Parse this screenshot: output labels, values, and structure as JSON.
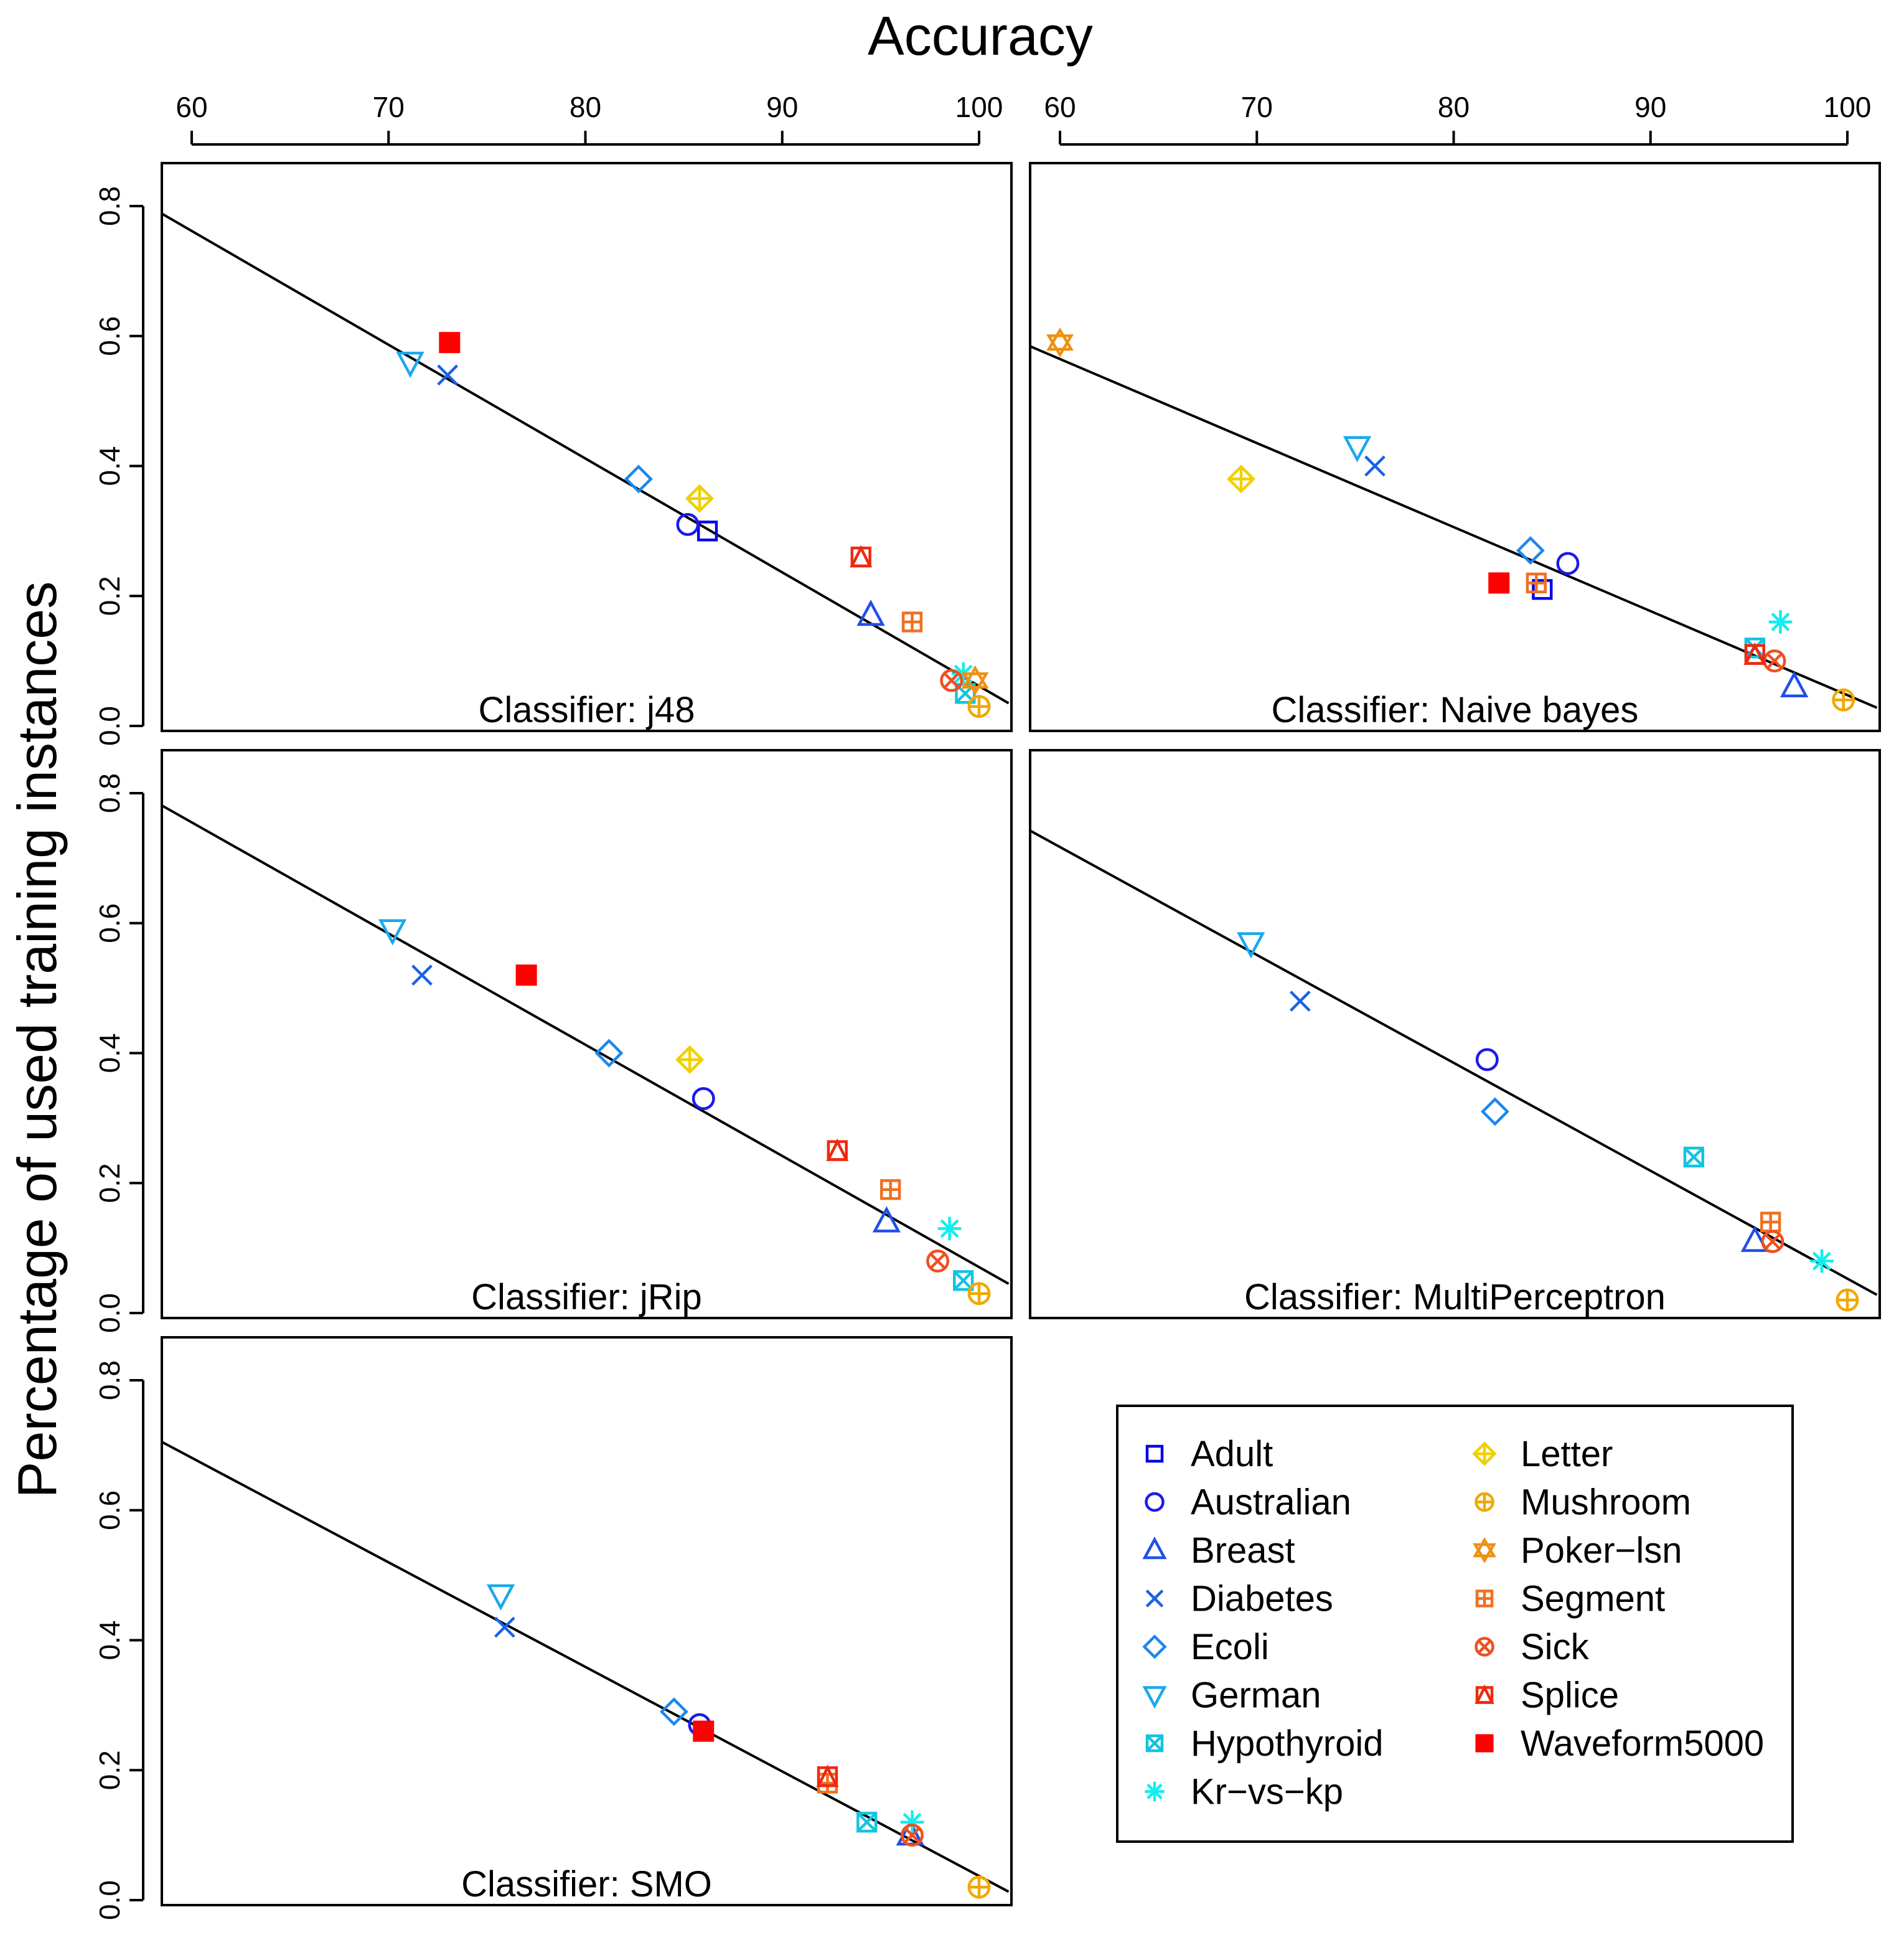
{
  "chart_data": {
    "type": "scatter",
    "title": "Accuracy",
    "xlabel": "Accuracy",
    "ylabel": "Percentage of used training instances",
    "xlim": [
      60,
      100
    ],
    "ylim": [
      0.0,
      0.8
    ],
    "x_ticks": [
      "60",
      "70",
      "80",
      "90",
      "100"
    ],
    "y_ticks": [
      "0.0",
      "0.2",
      "0.4",
      "0.6",
      "0.8"
    ],
    "grid": false,
    "legend_position": "bottom-right",
    "datasets": [
      {
        "name": "Adult",
        "marker": "square",
        "color": "#0000ee"
      },
      {
        "name": "Australian",
        "marker": "circle",
        "color": "#1a1aee"
      },
      {
        "name": "Breast",
        "marker": "triangle-up",
        "color": "#1f4fea"
      },
      {
        "name": "Diabetes",
        "marker": "x",
        "color": "#1a62e6"
      },
      {
        "name": "Ecoli",
        "marker": "diamond",
        "color": "#1b87ee"
      },
      {
        "name": "German",
        "marker": "triangle-down",
        "color": "#1aa8ee"
      },
      {
        "name": "Hypothyroid",
        "marker": "square-x",
        "color": "#11c4e0"
      },
      {
        "name": "Kr−vs−kp",
        "marker": "asterisk",
        "color": "#11eeee"
      },
      {
        "name": "Letter",
        "marker": "diamond-plus",
        "color": "#f0d000"
      },
      {
        "name": "Mushroom",
        "marker": "circle-plus",
        "color": "#f0a800"
      },
      {
        "name": "Poker−lsn",
        "marker": "star-of-david",
        "color": "#f09010"
      },
      {
        "name": "Segment",
        "marker": "square-plus",
        "color": "#f07020"
      },
      {
        "name": "Sick",
        "marker": "circle-x",
        "color": "#ee5020"
      },
      {
        "name": "Splice",
        "marker": "square-triangle",
        "color": "#ee2a10"
      },
      {
        "name": "Waveform5000",
        "marker": "filled-square",
        "color": "#ff0000"
      }
    ],
    "panels": [
      {
        "label": "Classifier: j48",
        "fit_line": {
          "x": [
            56.5,
            101.5
          ],
          "y": [
            0.823,
            0.035
          ]
        },
        "points": [
          {
            "dataset": "Adult",
            "x": 86.2,
            "y": 0.3
          },
          {
            "dataset": "Australian",
            "x": 85.2,
            "y": 0.31
          },
          {
            "dataset": "Breast",
            "x": 94.5,
            "y": 0.17
          },
          {
            "dataset": "Diabetes",
            "x": 73.0,
            "y": 0.54
          },
          {
            "dataset": "Ecoli",
            "x": 82.7,
            "y": 0.38
          },
          {
            "dataset": "German",
            "x": 71.1,
            "y": 0.56
          },
          {
            "dataset": "Hypothyroid",
            "x": 99.3,
            "y": 0.05
          },
          {
            "dataset": "Kr−vs−kp",
            "x": 99.2,
            "y": 0.08
          },
          {
            "dataset": "Letter",
            "x": 85.8,
            "y": 0.35
          },
          {
            "dataset": "Mushroom",
            "x": 100.0,
            "y": 0.03
          },
          {
            "dataset": "Poker−lsn",
            "x": 99.8,
            "y": 0.07
          },
          {
            "dataset": "Segment",
            "x": 96.6,
            "y": 0.16
          },
          {
            "dataset": "Sick",
            "x": 98.6,
            "y": 0.07
          },
          {
            "dataset": "Splice",
            "x": 94.0,
            "y": 0.26
          },
          {
            "dataset": "Waveform5000",
            "x": 73.1,
            "y": 0.59
          }
        ]
      },
      {
        "label": "Classifier: Naive bayes",
        "fit_line": {
          "x": [
            58.5,
            101.5
          ],
          "y": [
            0.584,
            0.028
          ]
        },
        "points": [
          {
            "dataset": "Adult",
            "x": 84.5,
            "y": 0.21
          },
          {
            "dataset": "Australian",
            "x": 85.8,
            "y": 0.25
          },
          {
            "dataset": "Breast",
            "x": 97.3,
            "y": 0.06
          },
          {
            "dataset": "Diabetes",
            "x": 76.0,
            "y": 0.4
          },
          {
            "dataset": "Ecoli",
            "x": 83.9,
            "y": 0.27
          },
          {
            "dataset": "German",
            "x": 75.1,
            "y": 0.43
          },
          {
            "dataset": "Hypothyroid",
            "x": 95.3,
            "y": 0.12
          },
          {
            "dataset": "Kr−vs−kp",
            "x": 96.6,
            "y": 0.16
          },
          {
            "dataset": "Letter",
            "x": 69.2,
            "y": 0.38
          },
          {
            "dataset": "Mushroom",
            "x": 99.8,
            "y": 0.04
          },
          {
            "dataset": "Poker−lsn",
            "x": 60.0,
            "y": 0.59
          },
          {
            "dataset": "Segment",
            "x": 84.2,
            "y": 0.22
          },
          {
            "dataset": "Sick",
            "x": 96.3,
            "y": 0.1
          },
          {
            "dataset": "Splice",
            "x": 95.3,
            "y": 0.11
          },
          {
            "dataset": "Waveform5000",
            "x": 82.3,
            "y": 0.22
          }
        ]
      },
      {
        "label": "Classifier: jRip",
        "fit_line": {
          "x": [
            56.5,
            101.5
          ],
          "y": [
            0.815,
            0.045
          ]
        },
        "points": [
          {
            "dataset": "Australian",
            "x": 86.0,
            "y": 0.33
          },
          {
            "dataset": "Breast",
            "x": 95.3,
            "y": 0.14
          },
          {
            "dataset": "Diabetes",
            "x": 71.7,
            "y": 0.52
          },
          {
            "dataset": "Ecoli",
            "x": 81.2,
            "y": 0.4
          },
          {
            "dataset": "German",
            "x": 70.2,
            "y": 0.59
          },
          {
            "dataset": "Hypothyroid",
            "x": 99.2,
            "y": 0.05
          },
          {
            "dataset": "Kr−vs−kp",
            "x": 98.5,
            "y": 0.13
          },
          {
            "dataset": "Letter",
            "x": 85.3,
            "y": 0.39
          },
          {
            "dataset": "Mushroom",
            "x": 100.0,
            "y": 0.03
          },
          {
            "dataset": "Segment",
            "x": 95.5,
            "y": 0.19
          },
          {
            "dataset": "Sick",
            "x": 97.9,
            "y": 0.08
          },
          {
            "dataset": "Splice",
            "x": 92.8,
            "y": 0.25
          },
          {
            "dataset": "Waveform5000",
            "x": 77.0,
            "y": 0.52
          }
        ]
      },
      {
        "label": "Classifier: MultiPerceptron",
        "fit_line": {
          "x": [
            58.5,
            101.5
          ],
          "y": [
            0.742,
            0.028
          ]
        },
        "points": [
          {
            "dataset": "Australian",
            "x": 81.7,
            "y": 0.39
          },
          {
            "dataset": "Breast",
            "x": 95.3,
            "y": 0.11
          },
          {
            "dataset": "Diabetes",
            "x": 72.2,
            "y": 0.48
          },
          {
            "dataset": "Ecoli",
            "x": 82.1,
            "y": 0.31
          },
          {
            "dataset": "German",
            "x": 69.7,
            "y": 0.57
          },
          {
            "dataset": "Hypothyroid",
            "x": 92.2,
            "y": 0.24
          },
          {
            "dataset": "Kr−vs−kp",
            "x": 98.7,
            "y": 0.08
          },
          {
            "dataset": "Mushroom",
            "x": 100.0,
            "y": 0.02
          },
          {
            "dataset": "Segment",
            "x": 96.1,
            "y": 0.14
          },
          {
            "dataset": "Sick",
            "x": 96.2,
            "y": 0.11
          }
        ]
      },
      {
        "label": "Classifier: SMO",
        "fit_line": {
          "x": [
            56.5,
            101.5
          ],
          "y": [
            0.737,
            0.013
          ]
        },
        "points": [
          {
            "dataset": "Australian",
            "x": 85.8,
            "y": 0.27
          },
          {
            "dataset": "Breast",
            "x": 96.5,
            "y": 0.1
          },
          {
            "dataset": "Diabetes",
            "x": 75.9,
            "y": 0.42
          },
          {
            "dataset": "Ecoli",
            "x": 84.5,
            "y": 0.29
          },
          {
            "dataset": "German",
            "x": 75.7,
            "y": 0.47
          },
          {
            "dataset": "Hypothyroid",
            "x": 94.3,
            "y": 0.12
          },
          {
            "dataset": "Kr−vs−kp",
            "x": 96.6,
            "y": 0.12
          },
          {
            "dataset": "Mushroom",
            "x": 100.0,
            "y": 0.02
          },
          {
            "dataset": "Segment",
            "x": 92.3,
            "y": 0.18
          },
          {
            "dataset": "Sick",
            "x": 96.6,
            "y": 0.1
          },
          {
            "dataset": "Splice",
            "x": 92.3,
            "y": 0.19
          },
          {
            "dataset": "Waveform5000",
            "x": 86.0,
            "y": 0.26
          }
        ]
      }
    ]
  }
}
